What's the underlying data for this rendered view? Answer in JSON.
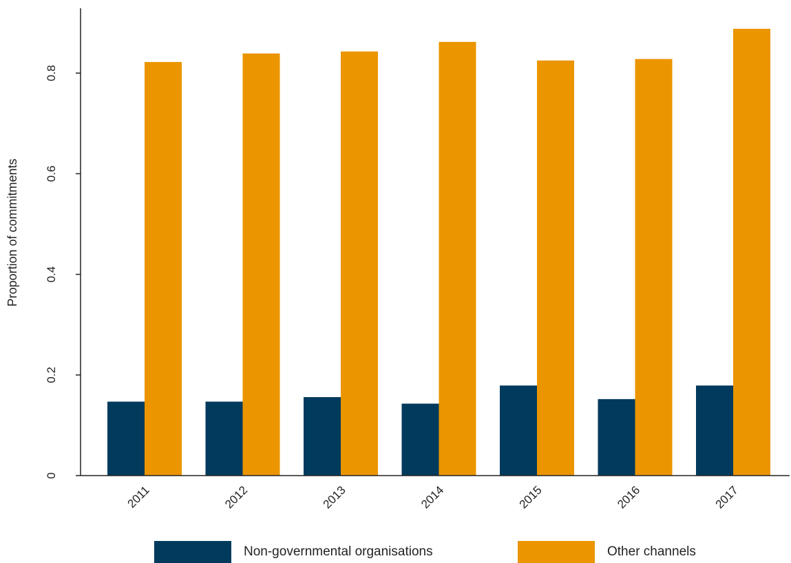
{
  "chart_data": {
    "type": "bar",
    "title": "",
    "xlabel": "",
    "ylabel": "Proportion of commitments",
    "categories": [
      "2011",
      "2012",
      "2013",
      "2014",
      "2015",
      "2016",
      "2017"
    ],
    "series": [
      {
        "name": "Non-governmental organisations",
        "color": "#003a5d",
        "values": [
          0.147,
          0.147,
          0.156,
          0.143,
          0.179,
          0.152,
          0.179
        ]
      },
      {
        "name": "Other channels",
        "color": "#eb9500",
        "values": [
          0.822,
          0.839,
          0.843,
          0.862,
          0.825,
          0.828,
          0.888
        ]
      }
    ],
    "yticks": [
      0,
      0.2,
      0.4,
      0.6,
      0.8
    ],
    "ytick_labels": [
      "0",
      "0.2",
      "0.4",
      "0.6",
      "0.8"
    ],
    "ylim": [
      0,
      0.93
    ],
    "grid": false,
    "legend_position": "bottom"
  }
}
